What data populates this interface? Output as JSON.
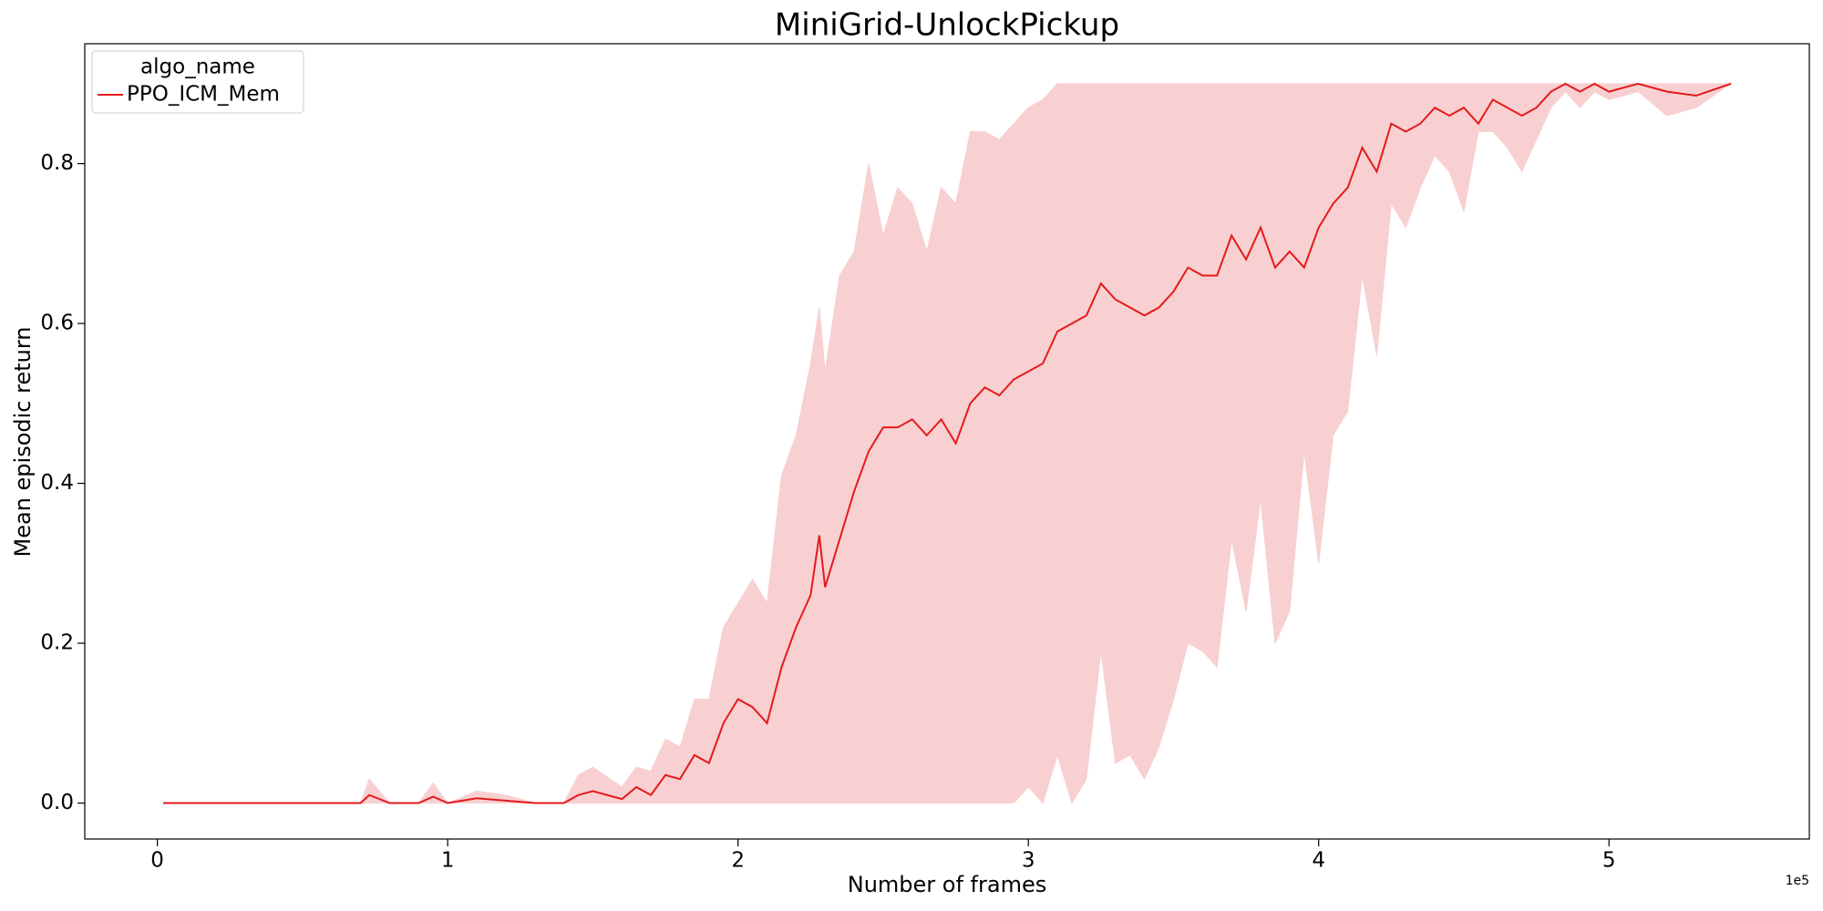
{
  "chart_data": {
    "type": "line",
    "title": "MiniGrid-UnlockPickup",
    "x_label": "Number of frames",
    "y_label": "Mean episodic return",
    "x_offset_label": "1e5",
    "legend_title": "algo_name",
    "legend_loc": "upper left",
    "band_color": "#f8d0d1",
    "xlim": [
      -0.25,
      5.69
    ],
    "ylim": [
      -0.045,
      0.95
    ],
    "xticks": [
      0,
      1,
      2,
      3,
      4,
      5
    ],
    "yticks": [
      0.0,
      0.2,
      0.4,
      0.6,
      0.8
    ],
    "x": [
      0.02,
      0.1,
      0.2,
      0.3,
      0.4,
      0.5,
      0.6,
      0.7,
      0.73,
      0.8,
      0.9,
      0.95,
      1.0,
      1.1,
      1.2,
      1.3,
      1.4,
      1.45,
      1.5,
      1.6,
      1.65,
      1.7,
      1.75,
      1.8,
      1.85,
      1.9,
      1.95,
      2.0,
      2.05,
      2.1,
      2.15,
      2.2,
      2.25,
      2.28,
      2.3,
      2.35,
      2.4,
      2.45,
      2.5,
      2.55,
      2.6,
      2.65,
      2.7,
      2.75,
      2.8,
      2.85,
      2.9,
      2.95,
      3.0,
      3.05,
      3.1,
      3.15,
      3.2,
      3.25,
      3.3,
      3.35,
      3.4,
      3.45,
      3.5,
      3.55,
      3.6,
      3.65,
      3.7,
      3.75,
      3.8,
      3.85,
      3.9,
      3.95,
      4.0,
      4.05,
      4.1,
      4.15,
      4.2,
      4.25,
      4.3,
      4.35,
      4.4,
      4.45,
      4.5,
      4.55,
      4.6,
      4.65,
      4.7,
      4.75,
      4.8,
      4.85,
      4.9,
      4.95,
      5.0,
      5.1,
      5.2,
      5.3,
      5.42
    ],
    "series": [
      {
        "name": "PPO_ICM_Mem",
        "color": "#e41a1c",
        "values": [
          0,
          0,
          0,
          0,
          0,
          0,
          0,
          0,
          0.01,
          0,
          0,
          0.008,
          0,
          0.006,
          0.003,
          0,
          0,
          0.01,
          0.015,
          0.005,
          0.02,
          0.01,
          0.035,
          0.03,
          0.06,
          0.05,
          0.1,
          0.13,
          0.12,
          0.1,
          0.17,
          0.22,
          0.26,
          0.335,
          0.27,
          0.33,
          0.39,
          0.44,
          0.47,
          0.47,
          0.48,
          0.46,
          0.48,
          0.45,
          0.5,
          0.52,
          0.51,
          0.53,
          0.54,
          0.55,
          0.59,
          0.6,
          0.61,
          0.65,
          0.63,
          0.62,
          0.61,
          0.62,
          0.64,
          0.67,
          0.66,
          0.66,
          0.71,
          0.68,
          0.72,
          0.67,
          0.69,
          0.67,
          0.72,
          0.75,
          0.77,
          0.82,
          0.79,
          0.85,
          0.84,
          0.85,
          0.87,
          0.86,
          0.87,
          0.85,
          0.88,
          0.87,
          0.86,
          0.87,
          0.89,
          0.9,
          0.89,
          0.9,
          0.89,
          0.9,
          0.89,
          0.885,
          0.9
        ],
        "lower": [
          0,
          0,
          0,
          0,
          0,
          0,
          0,
          0,
          0,
          0,
          0,
          0,
          0,
          0,
          0,
          0,
          0,
          0,
          0,
          0,
          0,
          0,
          0,
          0,
          0,
          0,
          0,
          0,
          0,
          0,
          0,
          0,
          0,
          0,
          0,
          0,
          0,
          0,
          0,
          0,
          0,
          0,
          0,
          0,
          0,
          0,
          0,
          0,
          0.02,
          0,
          0.06,
          0,
          0.03,
          0.19,
          0.05,
          0.06,
          0.03,
          0.07,
          0.13,
          0.2,
          0.19,
          0.17,
          0.33,
          0.24,
          0.38,
          0.2,
          0.24,
          0.44,
          0.3,
          0.46,
          0.49,
          0.66,
          0.56,
          0.75,
          0.72,
          0.77,
          0.81,
          0.79,
          0.74,
          0.84,
          0.84,
          0.82,
          0.79,
          0.83,
          0.87,
          0.89,
          0.87,
          0.89,
          0.88,
          0.89,
          0.86,
          0.87,
          0.9
        ],
        "upper": [
          0,
          0,
          0,
          0,
          0,
          0,
          0,
          0,
          0.03,
          0,
          0,
          0.025,
          0,
          0.015,
          0.01,
          0,
          0,
          0.035,
          0.045,
          0.02,
          0.045,
          0.04,
          0.08,
          0.07,
          0.13,
          0.13,
          0.22,
          0.25,
          0.28,
          0.25,
          0.41,
          0.46,
          0.55,
          0.62,
          0.54,
          0.66,
          0.69,
          0.8,
          0.71,
          0.77,
          0.75,
          0.69,
          0.77,
          0.75,
          0.84,
          0.84,
          0.83,
          0.85,
          0.87,
          0.88,
          0.9,
          0.9,
          0.9,
          0.9,
          0.9,
          0.9,
          0.9,
          0.9,
          0.9,
          0.9,
          0.9,
          0.9,
          0.9,
          0.9,
          0.9,
          0.9,
          0.9,
          0.9,
          0.9,
          0.9,
          0.9,
          0.9,
          0.9,
          0.9,
          0.9,
          0.9,
          0.9,
          0.9,
          0.9,
          0.9,
          0.9,
          0.9,
          0.9,
          0.9,
          0.9,
          0.9,
          0.9,
          0.9,
          0.9,
          0.9,
          0.9,
          0.9,
          0.9
        ]
      }
    ]
  }
}
